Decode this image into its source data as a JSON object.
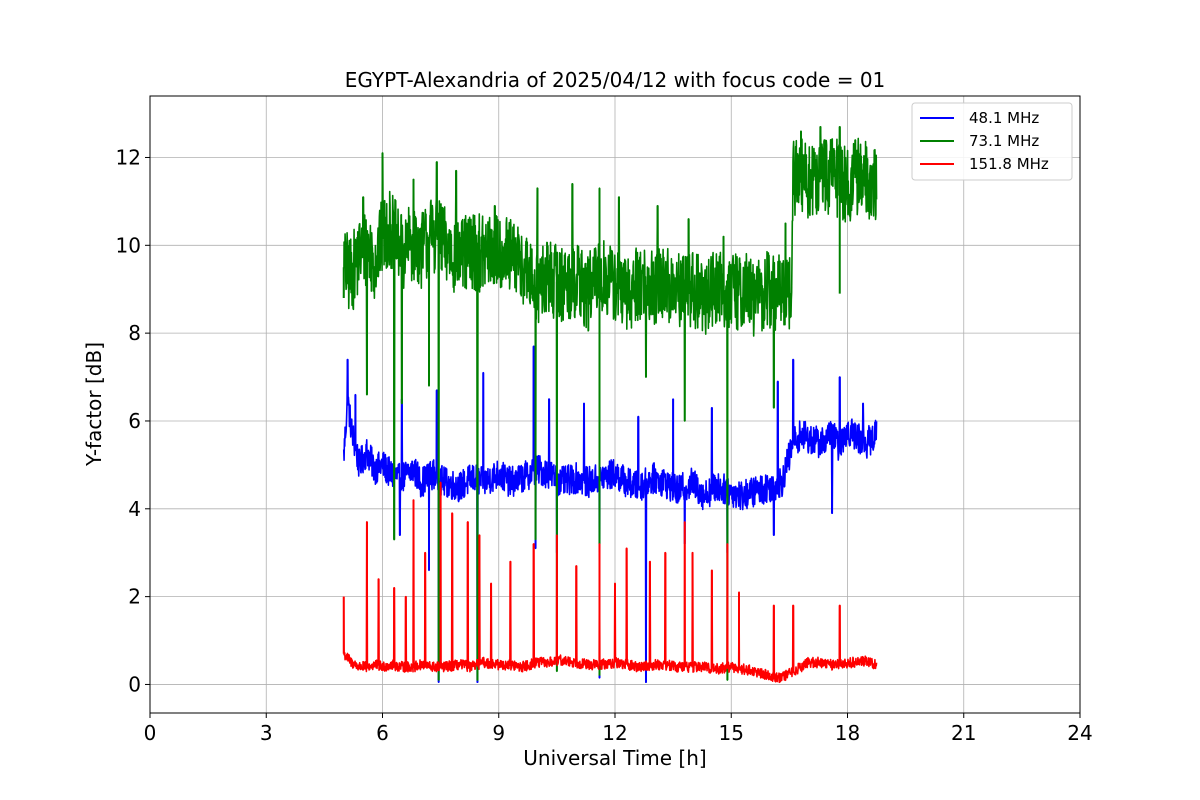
{
  "chart_data": {
    "type": "line",
    "title": "EGYPT-Alexandria of 2025/04/12 with focus code = 01",
    "xlabel": "Universal Time [h]",
    "ylabel": "Y-factor [dB]",
    "xlim": [
      0,
      24
    ],
    "ylim": [
      -0.65,
      13.4
    ],
    "xticks": [
      0,
      3,
      6,
      9,
      12,
      15,
      18,
      21,
      24
    ],
    "yticks": [
      0,
      2,
      4,
      6,
      8,
      10,
      12
    ],
    "grid": true,
    "legend_position": "top-right",
    "series": [
      {
        "name": " 48.1 MHz",
        "color": "#0000ff",
        "x": [
          5.0,
          5.1,
          5.2,
          5.4,
          5.6,
          5.8,
          6.0,
          6.2,
          6.5,
          6.8,
          7.0,
          7.3,
          7.6,
          8.0,
          8.3,
          8.6,
          9.0,
          9.3,
          9.6,
          10.0,
          10.3,
          10.6,
          11.0,
          11.3,
          11.6,
          12.0,
          12.3,
          12.6,
          13.0,
          13.3,
          13.6,
          14.0,
          14.3,
          14.6,
          15.0,
          15.3,
          15.6,
          16.0,
          16.3,
          16.6,
          16.8,
          17.0,
          17.3,
          17.6,
          17.8,
          18.0,
          18.3,
          18.5,
          18.75
        ],
        "y": [
          5.2,
          6.5,
          5.8,
          5.0,
          5.3,
          4.9,
          5.0,
          4.8,
          4.7,
          4.9,
          4.6,
          4.8,
          4.6,
          4.5,
          4.7,
          4.6,
          4.8,
          4.6,
          4.7,
          4.9,
          4.8,
          4.6,
          4.7,
          4.6,
          4.7,
          4.8,
          4.6,
          4.5,
          4.7,
          4.6,
          4.4,
          4.6,
          4.3,
          4.5,
          4.4,
          4.3,
          4.4,
          4.5,
          4.6,
          5.5,
          5.7,
          5.6,
          5.5,
          5.7,
          5.4,
          5.8,
          5.6,
          5.5,
          5.7
        ],
        "dips": [
          [
            6.45,
            3.4
          ],
          [
            7.2,
            2.6
          ],
          [
            7.45,
            0.05
          ],
          [
            8.45,
            0.05
          ],
          [
            9.95,
            3.1
          ],
          [
            10.5,
            3.0
          ],
          [
            11.6,
            0.15
          ],
          [
            12.8,
            0.05
          ],
          [
            13.8,
            3.2
          ],
          [
            14.9,
            3.0
          ],
          [
            16.1,
            3.4
          ],
          [
            17.6,
            3.9
          ]
        ],
        "spikes": [
          [
            5.1,
            7.4
          ],
          [
            5.3,
            6.6
          ],
          [
            6.5,
            6.5
          ],
          [
            7.4,
            6.7
          ],
          [
            8.6,
            7.1
          ],
          [
            9.9,
            7.7
          ],
          [
            10.3,
            6.5
          ],
          [
            11.2,
            6.4
          ],
          [
            12.6,
            6.1
          ],
          [
            13.5,
            6.5
          ],
          [
            14.5,
            6.3
          ],
          [
            16.2,
            6.9
          ],
          [
            16.6,
            7.4
          ],
          [
            17.8,
            7.0
          ],
          [
            18.4,
            6.4
          ]
        ]
      },
      {
        "name": " 73.1 MHz",
        "color": "#008000",
        "x": [
          5.0,
          5.2,
          5.4,
          5.6,
          5.8,
          6.0,
          6.2,
          6.5,
          6.8,
          7.0,
          7.3,
          7.6,
          8.0,
          8.3,
          8.6,
          9.0,
          9.3,
          9.6,
          9.8,
          10.0,
          10.3,
          10.6,
          11.0,
          11.3,
          11.6,
          12.0,
          12.3,
          12.6,
          13.0,
          13.3,
          13.6,
          14.0,
          14.3,
          14.6,
          15.0,
          15.3,
          15.6,
          16.0,
          16.3,
          16.55,
          16.6,
          16.8,
          17.0,
          17.3,
          17.6,
          17.8,
          18.0,
          18.3,
          18.5,
          18.75
        ],
        "y": [
          9.5,
          9.3,
          9.8,
          10.0,
          9.6,
          10.2,
          10.4,
          9.8,
          10.1,
          9.9,
          10.3,
          10.0,
          9.7,
          9.9,
          9.8,
          9.9,
          9.7,
          9.6,
          9.2,
          9.0,
          9.3,
          9.1,
          9.2,
          8.9,
          9.3,
          9.1,
          8.8,
          9.2,
          9.0,
          9.1,
          8.9,
          9.0,
          8.8,
          9.1,
          8.9,
          9.0,
          8.8,
          9.0,
          8.9,
          9.0,
          11.5,
          11.6,
          11.4,
          11.5,
          11.6,
          11.5,
          11.4,
          11.6,
          11.5,
          11.4
        ],
        "dips": [
          [
            5.0,
            8.8
          ],
          [
            5.6,
            6.6
          ],
          [
            6.3,
            3.3
          ],
          [
            6.5,
            6.4
          ],
          [
            7.2,
            6.8
          ],
          [
            7.45,
            0.1
          ],
          [
            8.45,
            0.1
          ],
          [
            9.95,
            3.3
          ],
          [
            10.5,
            0.3
          ],
          [
            11.6,
            0.2
          ],
          [
            12.8,
            7.0
          ],
          [
            13.8,
            6.0
          ],
          [
            14.9,
            0.1
          ],
          [
            16.1,
            6.3
          ],
          [
            17.8,
            8.9
          ]
        ],
        "spikes": [
          [
            5.5,
            11.1
          ],
          [
            6.0,
            12.1
          ],
          [
            6.8,
            11.5
          ],
          [
            7.4,
            11.9
          ],
          [
            7.9,
            11.7
          ],
          [
            8.9,
            10.9
          ],
          [
            10.0,
            11.3
          ],
          [
            10.9,
            11.4
          ],
          [
            11.6,
            11.3
          ],
          [
            12.1,
            11.1
          ],
          [
            13.1,
            10.9
          ],
          [
            13.9,
            10.6
          ],
          [
            14.8,
            10.2
          ],
          [
            16.4,
            10.5
          ],
          [
            16.8,
            12.6
          ],
          [
            17.3,
            12.7
          ],
          [
            17.8,
            12.7
          ],
          [
            18.2,
            12.4
          ]
        ]
      },
      {
        "name": " 151.8 MHz",
        "color": "#ff0000",
        "x": [
          5.0,
          5.2,
          5.4,
          5.6,
          5.8,
          6.0,
          6.2,
          6.5,
          6.8,
          7.0,
          7.3,
          7.6,
          8.0,
          8.3,
          8.6,
          9.0,
          9.3,
          9.6,
          10.0,
          10.3,
          10.6,
          11.0,
          11.3,
          11.6,
          12.0,
          12.3,
          12.6,
          13.0,
          13.3,
          13.6,
          14.0,
          14.3,
          14.6,
          15.0,
          15.3,
          15.6,
          16.0,
          16.3,
          16.6,
          17.0,
          17.3,
          17.6,
          18.0,
          18.3,
          18.5,
          18.75
        ],
        "y": [
          0.7,
          0.5,
          0.4,
          0.4,
          0.45,
          0.4,
          0.45,
          0.4,
          0.4,
          0.45,
          0.4,
          0.4,
          0.45,
          0.4,
          0.5,
          0.45,
          0.45,
          0.4,
          0.5,
          0.5,
          0.55,
          0.5,
          0.45,
          0.45,
          0.5,
          0.45,
          0.4,
          0.45,
          0.45,
          0.4,
          0.4,
          0.4,
          0.35,
          0.4,
          0.35,
          0.3,
          0.2,
          0.15,
          0.3,
          0.5,
          0.5,
          0.45,
          0.5,
          0.5,
          0.55,
          0.45
        ],
        "spikes": [
          [
            5.0,
            2.0
          ],
          [
            5.6,
            3.7
          ],
          [
            5.9,
            2.4
          ],
          [
            6.3,
            2.2
          ],
          [
            6.6,
            2.0
          ],
          [
            6.8,
            4.2
          ],
          [
            7.1,
            3.0
          ],
          [
            7.5,
            4.6
          ],
          [
            7.8,
            3.9
          ],
          [
            8.2,
            3.7
          ],
          [
            8.5,
            3.4
          ],
          [
            8.8,
            2.3
          ],
          [
            9.3,
            2.8
          ],
          [
            9.9,
            3.2
          ],
          [
            10.5,
            3.4
          ],
          [
            11.0,
            2.7
          ],
          [
            11.6,
            3.2
          ],
          [
            12.0,
            2.3
          ],
          [
            12.3,
            3.1
          ],
          [
            12.9,
            2.8
          ],
          [
            13.3,
            3.0
          ],
          [
            13.8,
            3.7
          ],
          [
            14.0,
            3.0
          ],
          [
            14.5,
            2.6
          ],
          [
            14.9,
            3.2
          ],
          [
            15.2,
            2.1
          ],
          [
            16.1,
            1.8
          ],
          [
            16.6,
            1.8
          ],
          [
            17.8,
            1.8
          ]
        ]
      }
    ]
  }
}
